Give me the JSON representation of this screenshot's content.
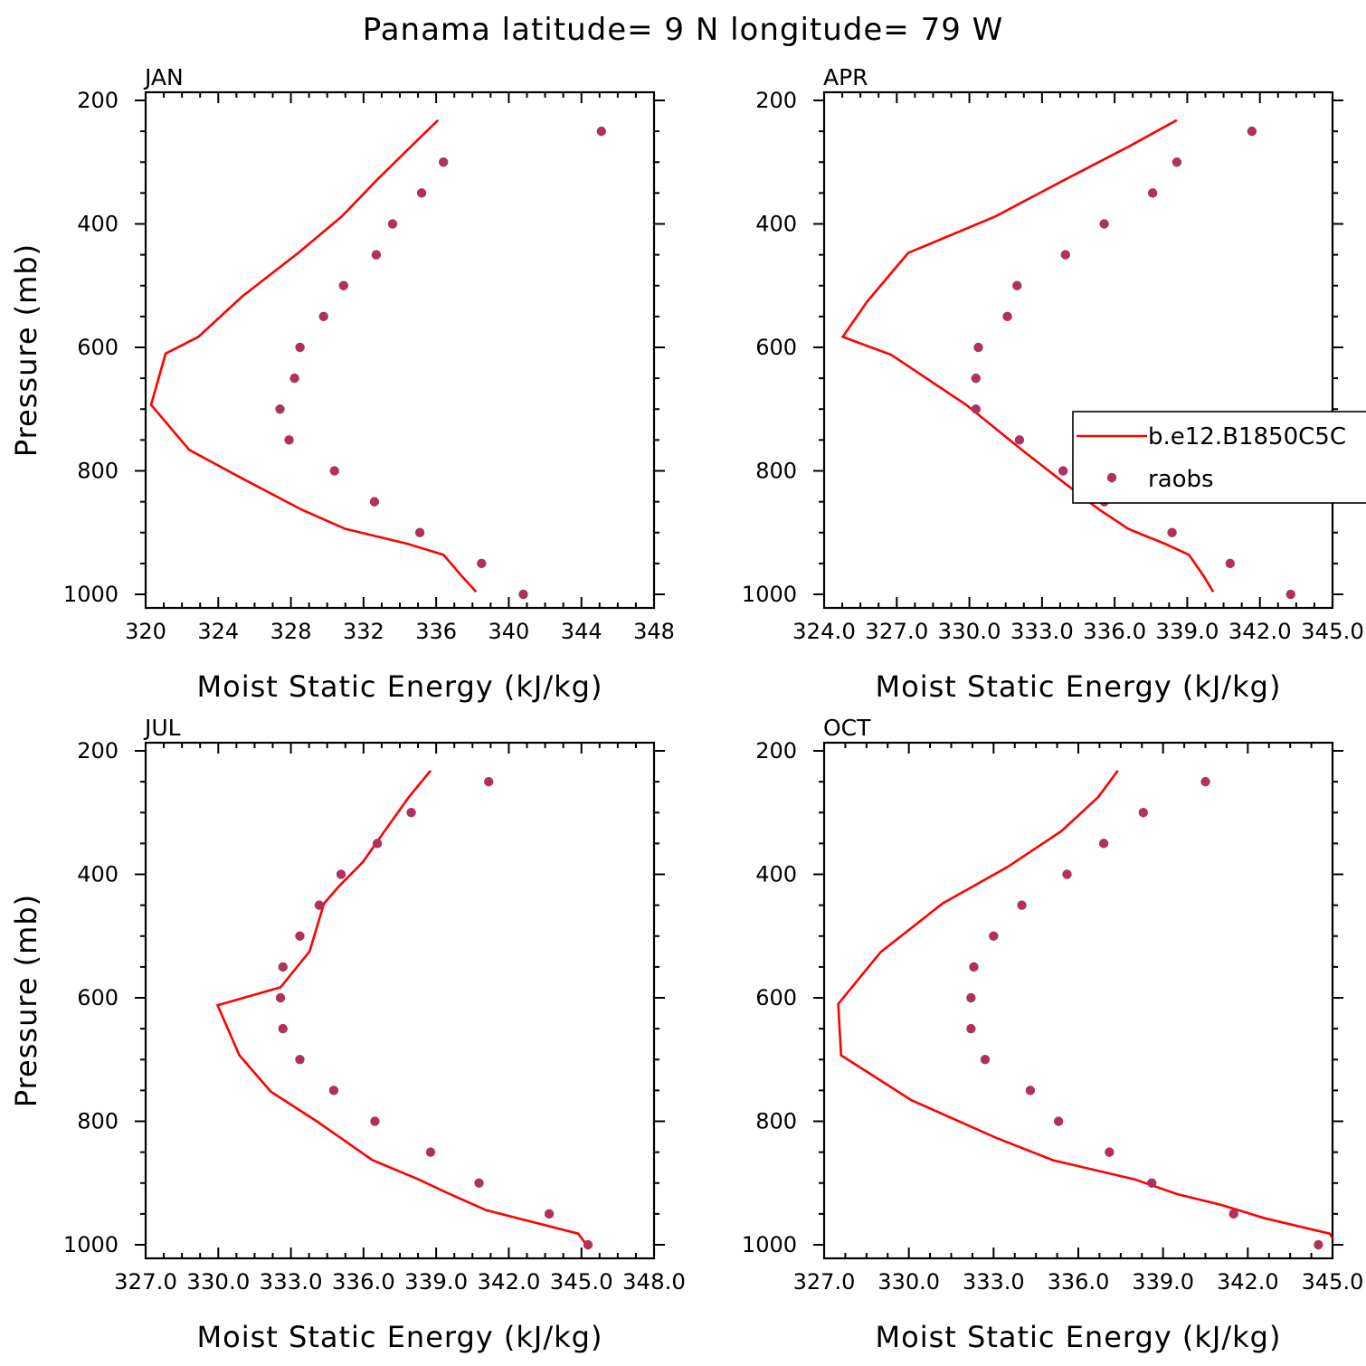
{
  "figure_title": "Panama  latitude= 9 N longitude= 79 W",
  "colors": {
    "model": "#ff0000",
    "obs": "#b03060",
    "axes": "#000000"
  },
  "legend": {
    "items": [
      {
        "label": "b.e12.B1850C5C",
        "kind": "line"
      },
      {
        "label": "raobs",
        "kind": "marker"
      }
    ],
    "placement": "right-middle of APR panel"
  },
  "chart_data": [
    {
      "type": "line+scatter",
      "panel": "JAN",
      "xlabel": "Moist Static Energy (kJ/kg)",
      "ylabel": "Pressure (mb)",
      "xlim": [
        320,
        348
      ],
      "ylim": [
        1000,
        200
      ],
      "y_inverted": true,
      "xticks": [
        320,
        324,
        328,
        332,
        336,
        340,
        344,
        348
      ],
      "xtick_labels": [
        "320",
        "324",
        "328",
        "332",
        "336",
        "340",
        "344",
        "348"
      ],
      "xminor_step": 1,
      "yticks": [
        200,
        400,
        600,
        800,
        1000
      ],
      "ytick_labels": [
        "200",
        "400",
        "600",
        "800",
        "1000"
      ],
      "series": [
        {
          "name": "b.e12.B1850C5C",
          "kind": "line",
          "x": [
            336.1,
            334.6,
            332.7,
            330.8,
            328.4,
            325.3,
            322.9,
            321.1,
            320.3,
            322.4,
            325.3,
            328.6,
            331.0,
            334.4,
            336.4,
            337.4,
            338.2
          ],
          "y": [
            232,
            275,
            330,
            388,
            447,
            518,
            583,
            610,
            693,
            766,
            812,
            863,
            894,
            918,
            936,
            970,
            996
          ]
        },
        {
          "name": "raobs",
          "kind": "scatter",
          "x": [
            345.1,
            336.4,
            335.2,
            333.6,
            332.7,
            330.9,
            329.8,
            328.5,
            328.2,
            327.4,
            327.9,
            330.4,
            332.6,
            335.1,
            338.5,
            340.8
          ],
          "y": [
            250,
            300,
            350,
            400,
            450,
            500,
            550,
            600,
            650,
            700,
            750,
            800,
            850,
            900,
            950,
            1000
          ]
        }
      ]
    },
    {
      "type": "line+scatter",
      "panel": "APR",
      "xlabel": "Moist Static Energy (kJ/kg)",
      "ylabel": "",
      "xlim": [
        324.03,
        345.03
      ],
      "ylim": [
        1000,
        200
      ],
      "y_inverted": true,
      "xticks": [
        324.03,
        327.03,
        330.03,
        333.03,
        336.03,
        339.03,
        342.03,
        345.03
      ],
      "xtick_labels": [
        "324.0",
        "327.0",
        "330.0",
        "333.0",
        "336.0",
        "339.0",
        "342.0",
        "345.0"
      ],
      "xminor_step": 0.75,
      "yticks": [
        200,
        400,
        600,
        800,
        1000
      ],
      "ytick_labels": [
        "200",
        "400",
        "600",
        "800",
        "1000"
      ],
      "series": [
        {
          "name": "b.e12.B1850C5C",
          "kind": "line",
          "x": [
            338.6,
            336.6,
            333.9,
            331.1,
            327.5,
            325.8,
            324.8,
            326.8,
            329.9,
            332.2,
            333.7,
            335.4,
            336.6,
            338.1,
            339.1,
            339.7,
            340.1
          ],
          "y": [
            232,
            275,
            330,
            388,
            447,
            526,
            583,
            612,
            693,
            766,
            812,
            863,
            894,
            918,
            936,
            970,
            996
          ]
        },
        {
          "name": "raobs",
          "kind": "scatter",
          "x": [
            341.7,
            338.6,
            337.6,
            335.6,
            334.0,
            332.0,
            331.6,
            330.4,
            330.3,
            330.3,
            332.1,
            333.9,
            335.6,
            338.4,
            340.8,
            343.3
          ],
          "y": [
            250,
            300,
            350,
            400,
            450,
            500,
            550,
            600,
            650,
            700,
            750,
            800,
            850,
            900,
            950,
            1000
          ]
        }
      ]
    },
    {
      "type": "line+scatter",
      "panel": "JUL",
      "xlabel": "Moist Static Energy (kJ/kg)",
      "ylabel": "Pressure (mb)",
      "xlim": [
        327.03,
        348.03
      ],
      "ylim": [
        1000,
        200
      ],
      "y_inverted": true,
      "xticks": [
        327.03,
        330.03,
        333.03,
        336.03,
        339.03,
        342.03,
        345.03,
        348.03
      ],
      "xtick_labels": [
        "327.0",
        "330.0",
        "333.0",
        "336.0",
        "339.0",
        "342.0",
        "345.0",
        "348.0"
      ],
      "xminor_step": 0.75,
      "yticks": [
        200,
        400,
        600,
        800,
        1000
      ],
      "ytick_labels": [
        "200",
        "400",
        "600",
        "800",
        "1000"
      ],
      "series": [
        {
          "name": "b.e12.B1850C5C",
          "kind": "line",
          "x": [
            338.8,
            337.9,
            336.9,
            336.0,
            335.0,
            334.4,
            333.8,
            332.6,
            330.0,
            330.9,
            332.2,
            334.1,
            336.4,
            338.3,
            339.6,
            341.1,
            344.9,
            345.2
          ],
          "y": [
            232,
            275,
            330,
            380,
            420,
            447,
            525,
            583,
            612,
            693,
            752,
            800,
            863,
            894,
            918,
            944,
            982,
            998
          ]
        },
        {
          "name": "raobs",
          "kind": "scatter",
          "x": [
            341.2,
            338.0,
            336.6,
            335.1,
            334.2,
            333.4,
            332.7,
            332.6,
            332.7,
            333.4,
            334.8,
            336.5,
            338.8,
            340.8,
            343.7,
            345.3
          ],
          "y": [
            250,
            300,
            350,
            400,
            450,
            500,
            550,
            600,
            650,
            700,
            750,
            800,
            850,
            900,
            950,
            1000
          ]
        }
      ]
    },
    {
      "type": "line+scatter",
      "panel": "OCT",
      "xlabel": "Moist Static Energy (kJ/kg)",
      "ylabel": "",
      "xlim": [
        327.0,
        345.0
      ],
      "ylim": [
        1000,
        200
      ],
      "y_inverted": true,
      "xticks": [
        327,
        330,
        333,
        336,
        339,
        342,
        345
      ],
      "xtick_labels": [
        "327.0",
        "330.0",
        "333.0",
        "336.0",
        "339.0",
        "342.0",
        "345.0"
      ],
      "xminor_step": 0.75,
      "yticks": [
        200,
        400,
        600,
        800,
        1000
      ],
      "ytick_labels": [
        "200",
        "400",
        "600",
        "800",
        "1000"
      ],
      "series": [
        {
          "name": "b.e12.B1850C5C",
          "kind": "line",
          "x": [
            337.4,
            336.7,
            335.4,
            333.5,
            331.2,
            329.0,
            327.5,
            327.6,
            330.1,
            333.1,
            335.1,
            338.0,
            339.5,
            341.1,
            342.6,
            344.9,
            345.1
          ],
          "y": [
            232,
            275,
            330,
            388,
            447,
            526,
            610,
            693,
            766,
            827,
            863,
            894,
            918,
            936,
            957,
            982,
            996
          ]
        },
        {
          "name": "raobs",
          "kind": "scatter",
          "x": [
            340.5,
            338.3,
            336.9,
            335.6,
            334.0,
            333.0,
            332.3,
            332.2,
            332.2,
            332.7,
            334.3,
            335.3,
            337.1,
            338.6,
            341.5,
            344.5
          ],
          "y": [
            250,
            300,
            350,
            400,
            450,
            500,
            550,
            600,
            650,
            700,
            750,
            800,
            850,
            900,
            950,
            1000
          ]
        }
      ]
    }
  ]
}
